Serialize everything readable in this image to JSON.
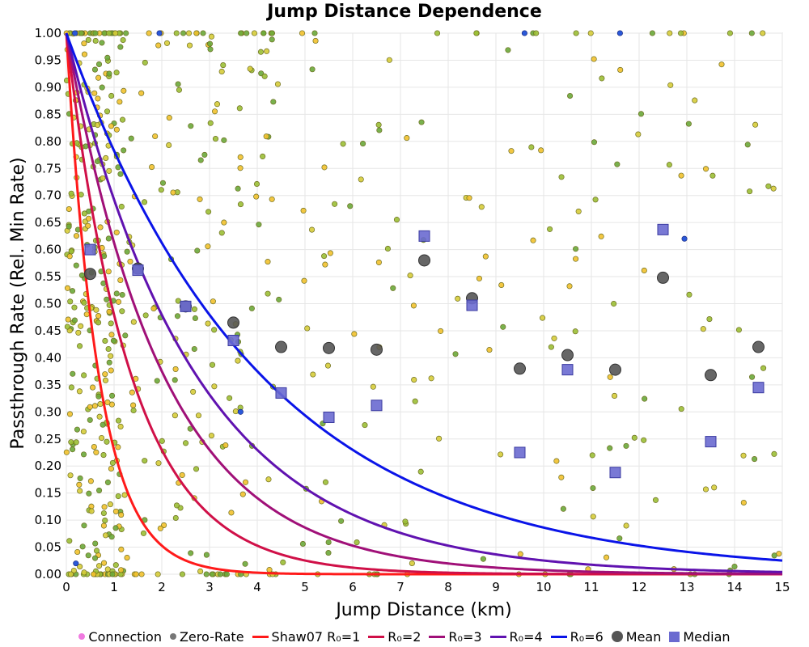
{
  "chart_data": {
    "type": "scatter",
    "title": "Jump Distance Dependence",
    "xlabel": "Jump Distance (km)",
    "ylabel": "Passthrough Rate (Rel. Min Rate)",
    "xlim": [
      0,
      15
    ],
    "ylim": [
      0,
      1
    ],
    "x_ticks": [
      "0",
      "1",
      "2",
      "3",
      "4",
      "5",
      "6",
      "7",
      "8",
      "9",
      "10",
      "11",
      "12",
      "13",
      "14",
      "15"
    ],
    "y_ticks": [
      "0.00",
      "0.05",
      "0.10",
      "0.15",
      "0.20",
      "0.25",
      "0.30",
      "0.35",
      "0.40",
      "0.45",
      "0.50",
      "0.55",
      "0.60",
      "0.65",
      "0.70",
      "0.75",
      "0.80",
      "0.85",
      "0.90",
      "0.95",
      "1.00"
    ],
    "grid": true,
    "legend_position": "bottom",
    "background_points": {
      "count": 650,
      "colors": [
        "#f2c12e",
        "#9bbf35",
        "#6aa83a",
        "#d6cc3a"
      ],
      "edge_color": "#6e6e20"
    },
    "curves": [
      {
        "name": "Shaw07 R₀=1",
        "R0": 1,
        "color": "#ff1a1a"
      },
      {
        "name": "R₀=2",
        "R0": 2,
        "color": "#d01048"
      },
      {
        "name": "R₀=3",
        "R0": 3,
        "color": "#a01078"
      },
      {
        "name": "R₀=4",
        "R0": 4,
        "color": "#6012b0"
      },
      {
        "name": "R₀=6",
        "R0": 6,
        "color": "#0a14e8"
      }
    ],
    "mean": {
      "name": "Mean",
      "color": "#555555",
      "x": [
        0.5,
        1.5,
        2.5,
        3.5,
        4.5,
        5.5,
        6.5,
        7.5,
        8.5,
        9.5,
        10.5,
        11.5,
        12.5,
        13.5,
        14.5
      ],
      "y": [
        0.555,
        0.565,
        0.495,
        0.465,
        0.42,
        0.418,
        0.415,
        0.58,
        0.51,
        0.38,
        0.405,
        0.378,
        0.548,
        0.368,
        0.42
      ]
    },
    "median": {
      "name": "Median",
      "color": "#6a6ad0",
      "x": [
        0.5,
        1.5,
        2.5,
        3.5,
        4.5,
        5.5,
        6.5,
        7.5,
        8.5,
        9.5,
        10.5,
        11.5,
        12.5,
        13.5,
        14.5
      ],
      "y": [
        0.6,
        0.562,
        0.495,
        0.432,
        0.335,
        0.29,
        0.312,
        0.625,
        0.497,
        0.225,
        0.378,
        0.188,
        0.637,
        0.245,
        0.345
      ]
    },
    "legend": [
      {
        "label": "Connection",
        "symbol": "dot",
        "color": "#f07ae0"
      },
      {
        "label": "Zero-Rate",
        "symbol": "dot",
        "color": "#777777"
      },
      {
        "label": "Shaw07 R₀=1",
        "symbol": "line",
        "color": "#ff1a1a"
      },
      {
        "label": "R₀=2",
        "symbol": "line",
        "color": "#d01048"
      },
      {
        "label": "R₀=3",
        "symbol": "line",
        "color": "#a01078"
      },
      {
        "label": "R₀=4",
        "symbol": "line",
        "color": "#6012b0"
      },
      {
        "label": "R₀=6",
        "symbol": "line",
        "color": "#0a14e8"
      },
      {
        "label": "Mean",
        "symbol": "circle",
        "color": "#555555"
      },
      {
        "label": "Median",
        "symbol": "square",
        "color": "#6a6ad0"
      }
    ]
  }
}
